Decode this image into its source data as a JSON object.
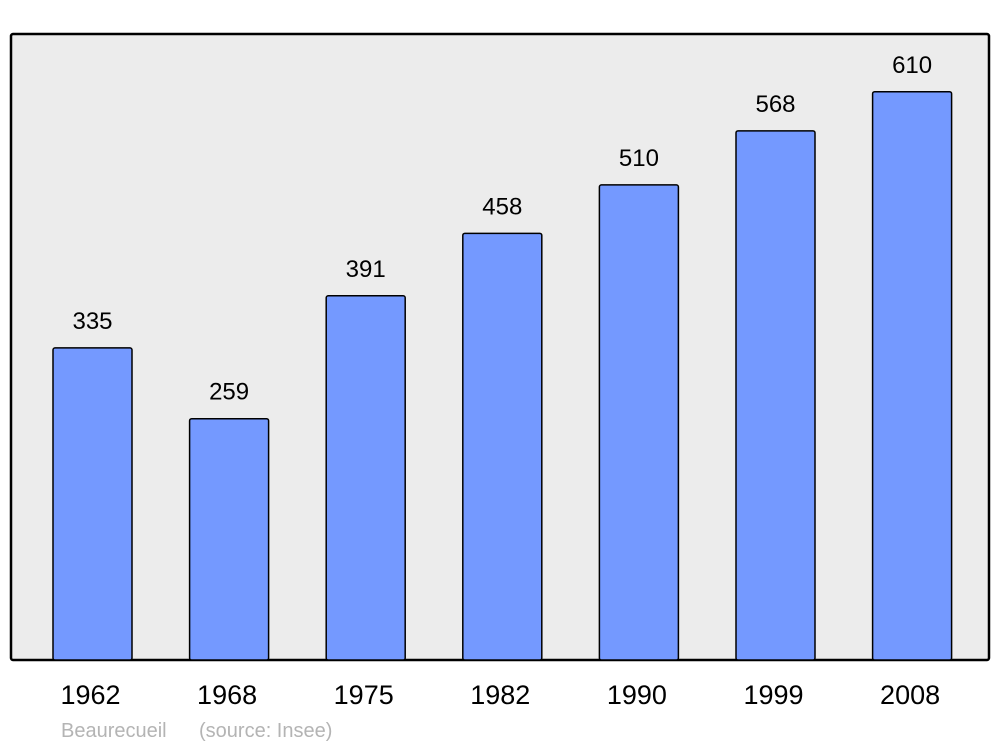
{
  "chart_data": {
    "type": "bar",
    "categories": [
      "1962",
      "1968",
      "1975",
      "1982",
      "1990",
      "1999",
      "2008"
    ],
    "values": [
      335,
      259,
      391,
      458,
      510,
      568,
      610
    ],
    "title": "",
    "xlabel": "",
    "ylabel": "",
    "ylim": [
      0,
      672
    ],
    "grid": false,
    "data_labels": true,
    "colors": {
      "bar": "#7499ff",
      "plot_background": "#ececec",
      "frame": "#000000",
      "footer_text": "#b4b4b4"
    }
  },
  "footer": {
    "place": "Beaurecueil",
    "source": "(source: Insee)"
  }
}
